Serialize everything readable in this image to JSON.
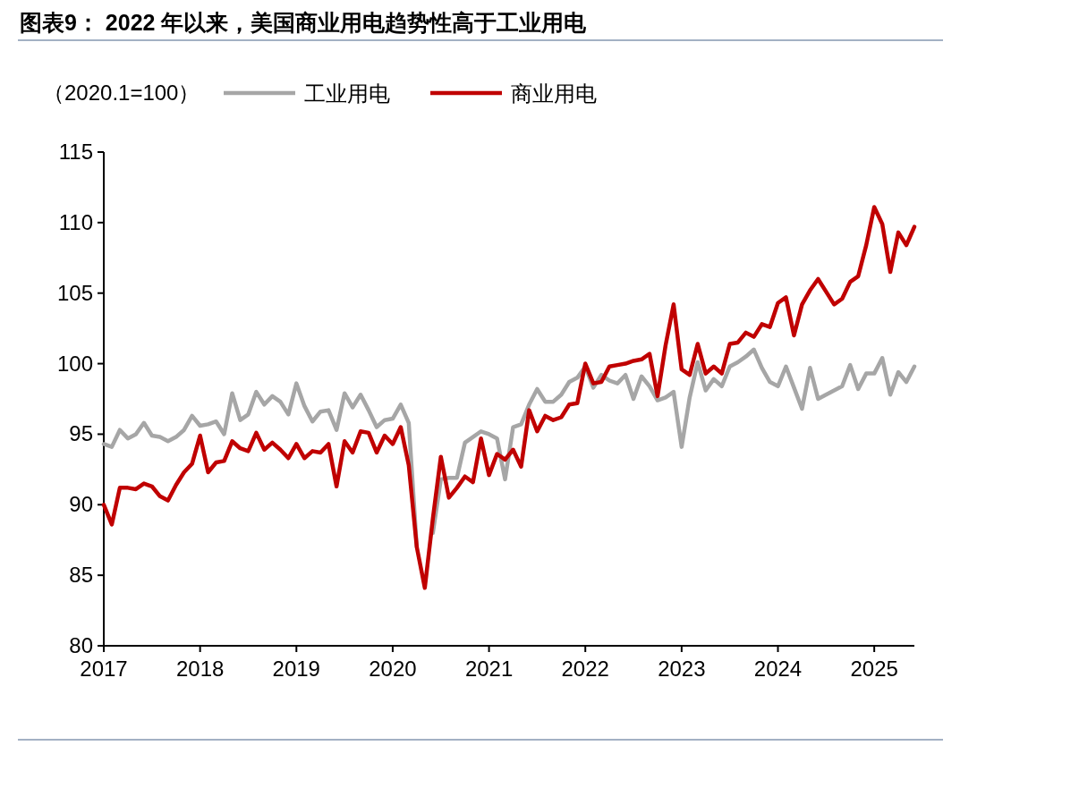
{
  "chart_data": {
    "type": "line",
    "title": "图表9：  2022 年以来，美国商业用电趋势性高于工业用电",
    "ylabel": "（2020.1=100）",
    "x": [
      "2017-01",
      "2017-02",
      "2017-03",
      "2017-04",
      "2017-05",
      "2017-06",
      "2017-07",
      "2017-08",
      "2017-09",
      "2017-10",
      "2017-11",
      "2017-12",
      "2018-01",
      "2018-02",
      "2018-03",
      "2018-04",
      "2018-05",
      "2018-06",
      "2018-07",
      "2018-08",
      "2018-09",
      "2018-10",
      "2018-11",
      "2018-12",
      "2019-01",
      "2019-02",
      "2019-03",
      "2019-04",
      "2019-05",
      "2019-06",
      "2019-07",
      "2019-08",
      "2019-09",
      "2019-10",
      "2019-11",
      "2019-12",
      "2020-01",
      "2020-02",
      "2020-03",
      "2020-04",
      "2020-05",
      "2020-06",
      "2020-07",
      "2020-08",
      "2020-09",
      "2020-10",
      "2020-11",
      "2020-12",
      "2021-01",
      "2021-02",
      "2021-03",
      "2021-04",
      "2021-05",
      "2021-06",
      "2021-07",
      "2021-08",
      "2021-09",
      "2021-10",
      "2021-11",
      "2021-12",
      "2022-01",
      "2022-02",
      "2022-03",
      "2022-04",
      "2022-05",
      "2022-06",
      "2022-07",
      "2022-08",
      "2022-09",
      "2022-10",
      "2022-11",
      "2022-12",
      "2023-01",
      "2023-02",
      "2023-03",
      "2023-04",
      "2023-05",
      "2023-06",
      "2023-07",
      "2023-08",
      "2023-09",
      "2023-10",
      "2023-11",
      "2023-12",
      "2024-01",
      "2024-02",
      "2024-03",
      "2024-04",
      "2024-05",
      "2024-06",
      "2024-07",
      "2024-08",
      "2024-09",
      "2024-10",
      "2024-11",
      "2024-12",
      "2025-01",
      "2025-02",
      "2025-03",
      "2025-04",
      "2025-05",
      "2025-06"
    ],
    "series": [
      {
        "name": "工业用电",
        "color": "#a6a6a6",
        "values": [
          94.3,
          94.1,
          95.3,
          94.7,
          95.0,
          95.8,
          94.9,
          94.8,
          94.5,
          94.8,
          95.3,
          96.3,
          95.6,
          95.7,
          95.9,
          95.0,
          97.9,
          96.0,
          96.4,
          98.0,
          97.1,
          97.7,
          97.3,
          96.4,
          98.6,
          97.0,
          95.9,
          96.6,
          96.7,
          95.3,
          97.9,
          96.9,
          97.8,
          96.7,
          95.5,
          96.0,
          96.1,
          97.1,
          95.8,
          87.0,
          null,
          88.0,
          91.8,
          91.9,
          91.9,
          94.4,
          94.8,
          95.2,
          95.0,
          94.7,
          91.8,
          95.5,
          95.7,
          97.1,
          98.2,
          97.3,
          97.3,
          97.8,
          98.7,
          99.0,
          99.8,
          98.3,
          99.2,
          98.8,
          98.6,
          99.2,
          97.5,
          99.1,
          98.4,
          97.4,
          97.6,
          98.0,
          94.1,
          97.6,
          100.1,
          98.1,
          98.9,
          98.4,
          99.8,
          100.1,
          100.5,
          101.0,
          99.7,
          98.7,
          98.4,
          99.8,
          98.3,
          96.8,
          99.7,
          97.5,
          97.8,
          98.1,
          98.4,
          99.9,
          98.2,
          99.3,
          99.3,
          100.4,
          97.8,
          99.4,
          98.7,
          99.8
        ]
      },
      {
        "name": "商业用电",
        "color": "#c00000",
        "values": [
          90.0,
          88.6,
          91.2,
          91.2,
          91.1,
          91.5,
          91.3,
          90.6,
          90.3,
          91.4,
          92.3,
          92.9,
          94.9,
          92.3,
          93.0,
          93.1,
          94.5,
          94.0,
          93.8,
          95.1,
          93.9,
          94.4,
          93.9,
          93.3,
          94.3,
          93.3,
          93.8,
          93.7,
          94.3,
          91.3,
          94.5,
          93.7,
          95.2,
          95.1,
          93.7,
          94.9,
          94.3,
          95.5,
          92.8,
          87.0,
          84.1,
          89.0,
          93.4,
          90.5,
          91.2,
          92.0,
          91.6,
          94.7,
          92.1,
          93.6,
          93.2,
          93.9,
          92.7,
          96.7,
          95.2,
          96.3,
          96.0,
          96.2,
          97.1,
          97.2,
          100.0,
          98.6,
          98.7,
          99.8,
          99.9,
          100.0,
          100.2,
          100.3,
          100.7,
          97.7,
          101.3,
          104.2,
          99.6,
          99.2,
          101.4,
          99.3,
          99.8,
          99.3,
          101.4,
          101.5,
          102.2,
          101.9,
          102.8,
          102.6,
          104.3,
          104.7,
          102.0,
          104.2,
          105.2,
          106.0,
          105.1,
          104.2,
          104.6,
          105.8,
          106.2,
          108.4,
          111.1,
          109.9,
          106.5,
          109.3,
          108.4,
          109.7
        ]
      }
    ],
    "xlim": [
      "2017-01",
      "2025-06"
    ],
    "xticks": [
      "2017",
      "2018",
      "2019",
      "2020",
      "2021",
      "2022",
      "2023",
      "2024",
      "2025"
    ],
    "ylim": [
      80,
      115
    ],
    "yticks": [
      80,
      85,
      90,
      95,
      100,
      105,
      110,
      115
    ],
    "legend": "top",
    "grid": false,
    "marker": "none",
    "line_style": "solid"
  }
}
